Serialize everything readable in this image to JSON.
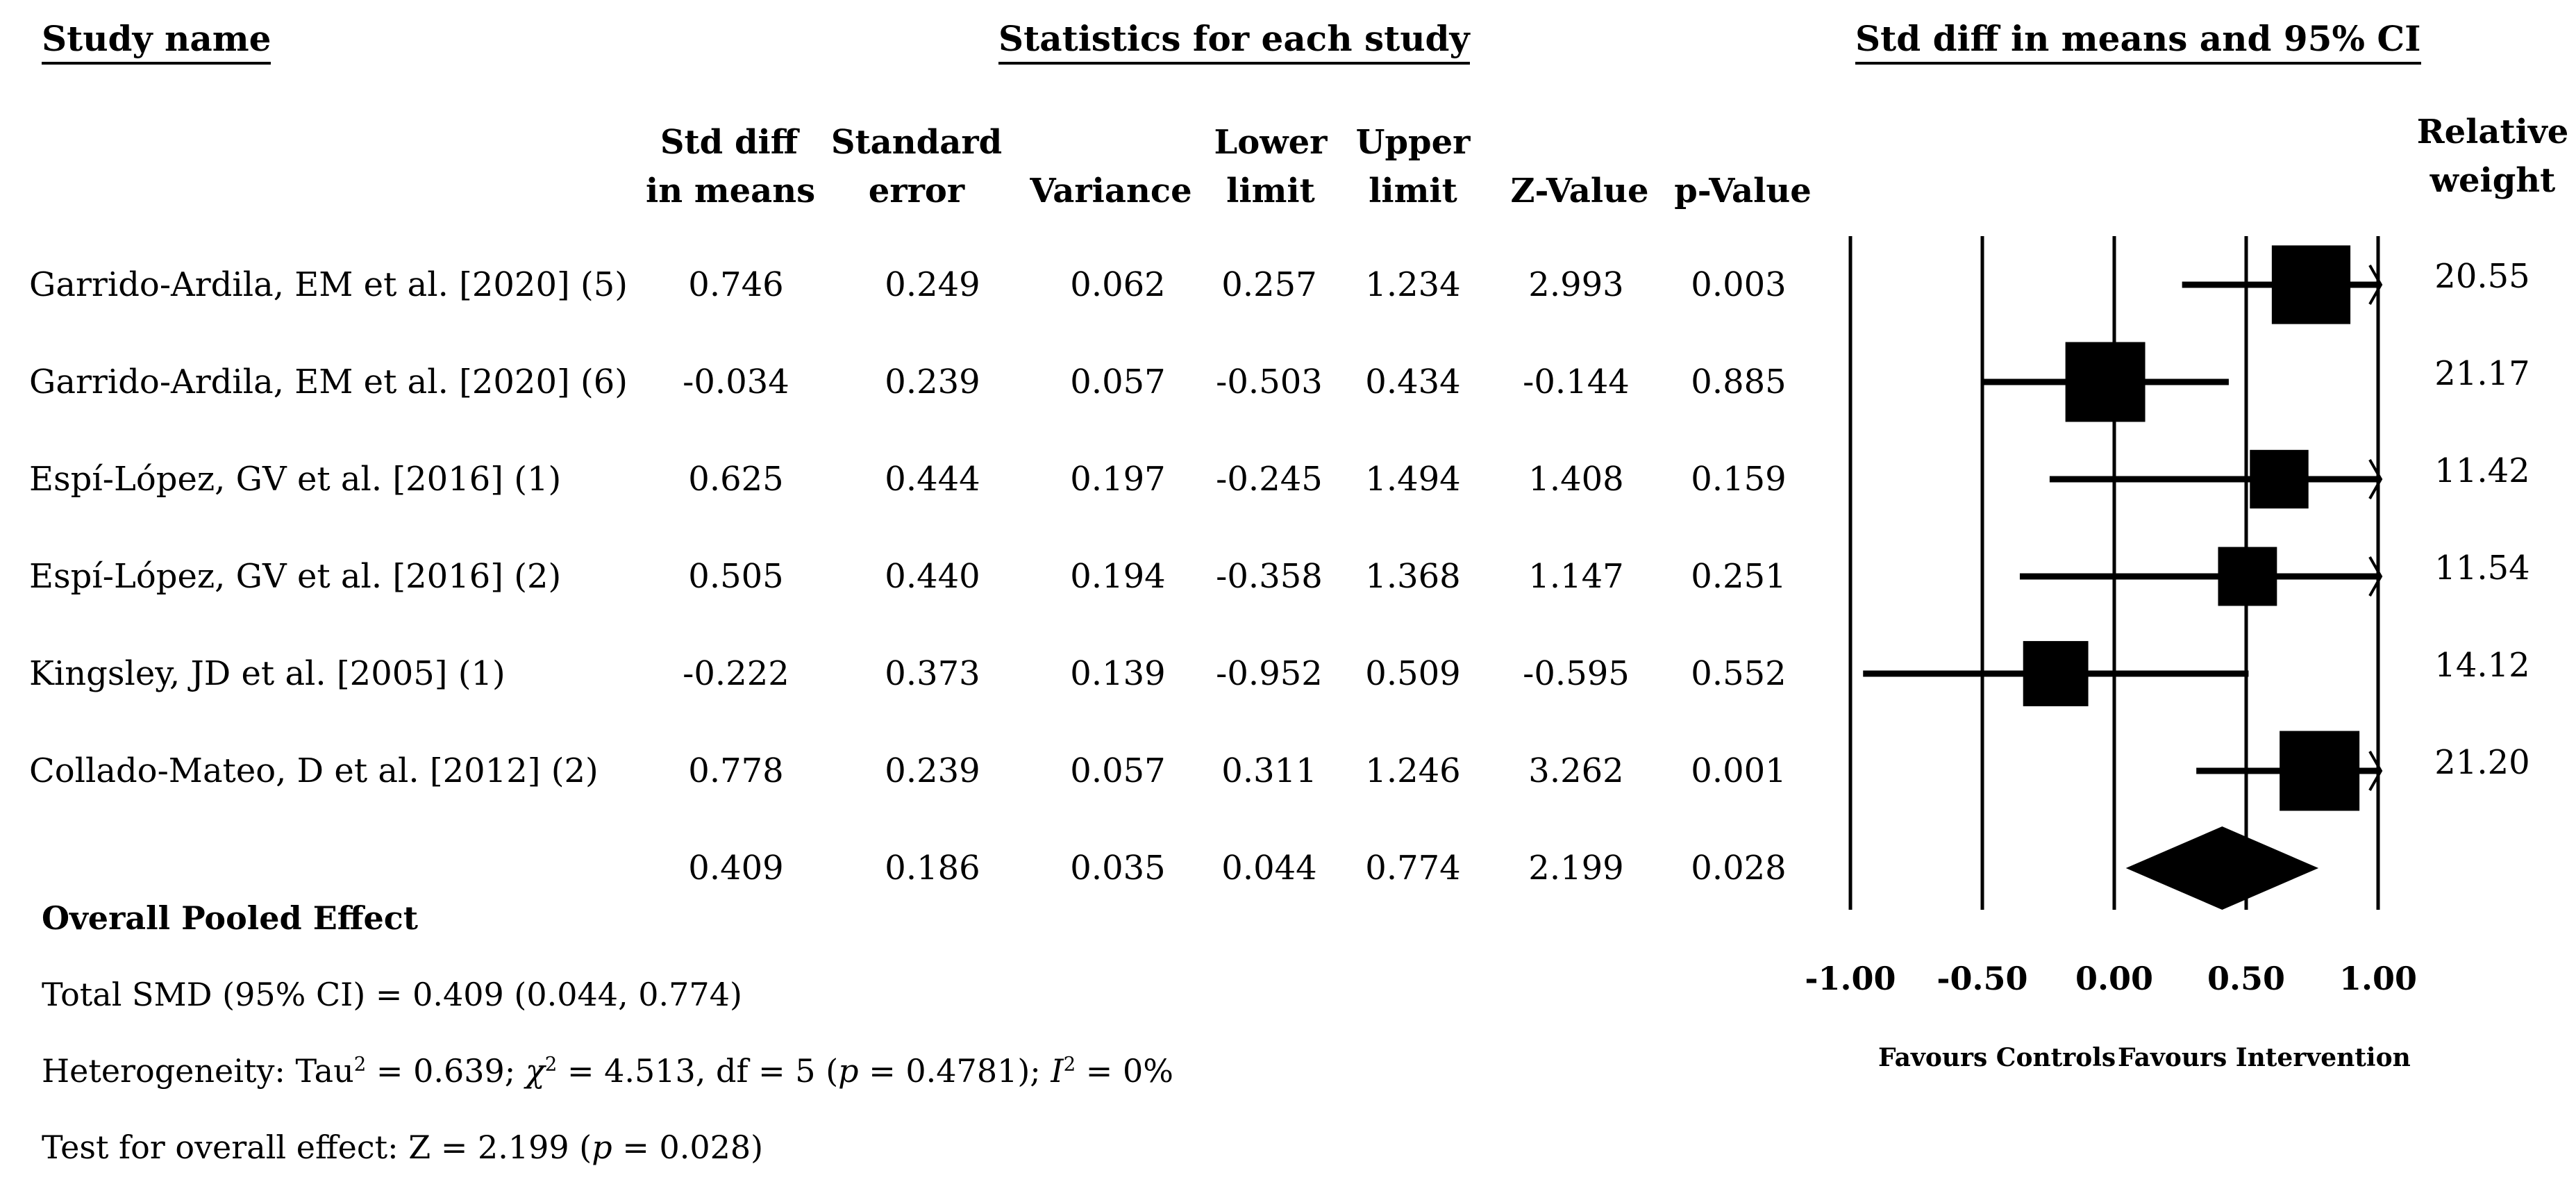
{
  "headers": {
    "study_name": "Study name",
    "statistics": "Statistics for each study",
    "ci": "Std diff in means and 95% CI"
  },
  "columns": {
    "smd": [
      "Std diff",
      "in means"
    ],
    "se": [
      "Standard",
      "error"
    ],
    "variance": "Variance",
    "lower": [
      "Lower",
      "limit"
    ],
    "upper": [
      "Upper",
      "limit"
    ],
    "z": "Z-Value",
    "p": "p-Value",
    "weight": [
      "Relative",
      "weight"
    ]
  },
  "studies": [
    {
      "name": "Garrido-Ardila, EM et al. [2020] (5)",
      "smd": "0.746",
      "se": "0.249",
      "variance": "0.062",
      "lower": "0.257",
      "upper": "1.234",
      "z": "2.993",
      "p": "0.003",
      "weight": "20.55"
    },
    {
      "name": "Garrido-Ardila, EM et al. [2020] (6)",
      "smd": "-0.034",
      "se": "0.239",
      "variance": "0.057",
      "lower": "-0.503",
      "upper": "0.434",
      "z": "-0.144",
      "p": "0.885",
      "weight": "21.17"
    },
    {
      "name": "Espí-López, GV et al. [2016] (1)",
      "smd": "0.625",
      "se": "0.444",
      "variance": "0.197",
      "lower": "-0.245",
      "upper": "1.494",
      "z": "1.408",
      "p": "0.159",
      "weight": "11.42"
    },
    {
      "name": "Espí-López, GV et al. [2016] (2)",
      "smd": "0.505",
      "se": "0.440",
      "variance": "0.194",
      "lower": "-0.358",
      "upper": "1.368",
      "z": "1.147",
      "p": "0.251",
      "weight": "11.54"
    },
    {
      "name": "Kingsley, JD et al. [2005] (1)",
      "smd": "-0.222",
      "se": "0.373",
      "variance": "0.139",
      "lower": "-0.952",
      "upper": "0.509",
      "z": "-0.595",
      "p": "0.552",
      "weight": "14.12"
    },
    {
      "name": "Collado-Mateo, D et al. [2012] (2)",
      "smd": "0.778",
      "se": "0.239",
      "variance": "0.057",
      "lower": "0.311",
      "upper": "1.246",
      "z": "3.262",
      "p": "0.001",
      "weight": "21.20"
    }
  ],
  "pooled": {
    "smd": "0.409",
    "se": "0.186",
    "variance": "0.035",
    "lower": "0.044",
    "upper": "0.774",
    "z": "2.199",
    "p": "0.028"
  },
  "footer": {
    "overall_label": "Overall Pooled Effect",
    "total": "Total SMD (95% CI) = 0.409 (0.044, 0.774)",
    "het_prefix": "Heterogeneity: Tau",
    "het_tau2": "2",
    "het_mid1": " = 0.639; ",
    "het_chi": "χ",
    "het_chi_sup": "2",
    "het_mid2": " = 4.513, df = 5 (",
    "het_p": "p",
    "het_mid3": " = 0.4781); ",
    "het_I": "I",
    "het_I_sup": "2",
    "het_end": " = 0%",
    "test_prefix": "Test for overall effect: Z = 2.199 (",
    "test_p": "p",
    "test_end": " = 0.028)"
  },
  "axis": {
    "ticks": [
      "-1.00",
      "-0.50",
      "0.00",
      "0.50",
      "1.00"
    ],
    "favours_left": "Favours Controls",
    "favours_right": "Favours Intervention"
  },
  "chart_data": {
    "type": "forest",
    "xlim": [
      -1.0,
      1.0
    ],
    "x_ticks": [
      -1.0,
      -0.5,
      0.0,
      0.5,
      1.0
    ],
    "studies": [
      {
        "name": "Garrido-Ardila, EM et al. [2020] (5)",
        "estimate": 0.746,
        "lower": 0.257,
        "upper": 1.234,
        "weight": 20.55
      },
      {
        "name": "Garrido-Ardila, EM et al. [2020] (6)",
        "estimate": -0.034,
        "lower": -0.503,
        "upper": 0.434,
        "weight": 21.17
      },
      {
        "name": "Espí-López, GV et al. [2016] (1)",
        "estimate": 0.625,
        "lower": -0.245,
        "upper": 1.494,
        "weight": 11.42
      },
      {
        "name": "Espí-López, GV et al. [2016] (2)",
        "estimate": 0.505,
        "lower": -0.358,
        "upper": 1.368,
        "weight": 11.54
      },
      {
        "name": "Kingsley, JD et al. [2005] (1)",
        "estimate": -0.222,
        "lower": -0.952,
        "upper": 0.509,
        "weight": 14.12
      },
      {
        "name": "Collado-Mateo, D et al. [2012] (2)",
        "estimate": 0.778,
        "lower": 0.311,
        "upper": 1.246,
        "weight": 21.2
      }
    ],
    "pooled": {
      "estimate": 0.409,
      "lower": 0.044,
      "upper": 0.774
    },
    "favours": [
      "Favours Controls",
      "Favours Intervention"
    ]
  }
}
